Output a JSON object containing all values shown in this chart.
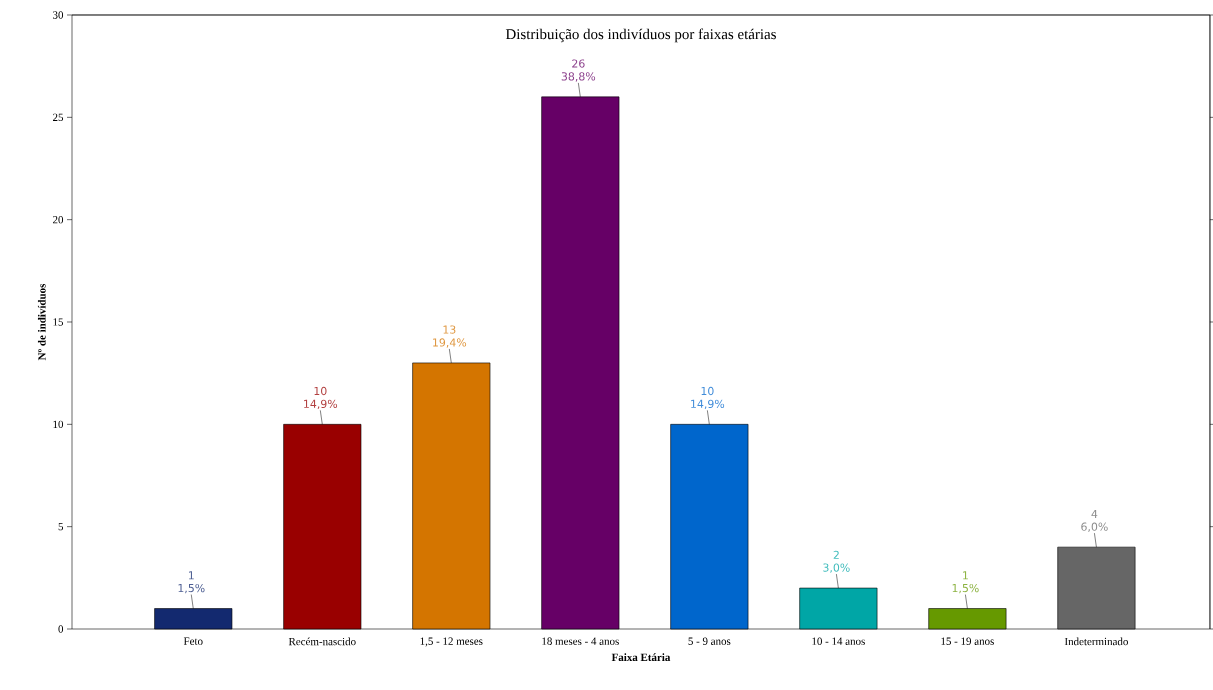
{
  "chart_data": {
    "type": "bar",
    "title": "Distribuição dos indivíduos por faixas etárias",
    "xlabel": "Faixa Etária",
    "ylabel": "Nº de indivíduos",
    "categories": [
      "Feto",
      "Recém-nascido",
      "1,5 - 12 meses",
      "18 meses - 4 anos",
      "5 - 9 anos",
      "10 - 14 anos",
      "15 - 19 anos",
      "Indeterminado"
    ],
    "values": [
      1,
      10,
      13,
      26,
      10,
      2,
      1,
      4
    ],
    "colors": [
      "#13296f",
      "#990000",
      "#d47500",
      "#660066",
      "#0066cc",
      "#00a6a6",
      "#669900",
      "#666666"
    ],
    "data_labels": true,
    "annotations": [
      {
        "text": "1,5%",
        "x": "Feto",
        "y": 1
      },
      {
        "text": "14,9%",
        "x": "Recém-nascido",
        "y": 10
      },
      {
        "text": "19,4%",
        "x": "1,5 - 12 meses",
        "y": 13
      },
      {
        "text": "38,8%",
        "x": "18 meses - 4 anos",
        "y": 26
      },
      {
        "text": "14,9%",
        "x": "5 - 9 anos",
        "y": 10
      },
      {
        "text": "3,0%",
        "x": "10 - 14 anos",
        "y": 2
      },
      {
        "text": "1,5%",
        "x": "15 - 19 anos",
        "y": 1
      },
      {
        "text": "6,0%",
        "x": "Indeterminado",
        "y": 4
      }
    ],
    "ylim": [
      0,
      30
    ],
    "yticks": [
      0,
      5,
      10,
      15,
      20,
      25,
      30
    ],
    "grid": false
  }
}
